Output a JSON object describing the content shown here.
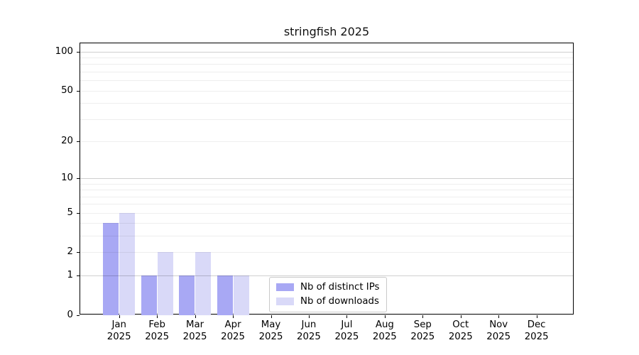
{
  "chart_data": {
    "type": "bar",
    "title": "stringfish 2025",
    "categories": [
      {
        "month": "Jan",
        "year": "2025"
      },
      {
        "month": "Feb",
        "year": "2025"
      },
      {
        "month": "Mar",
        "year": "2025"
      },
      {
        "month": "Apr",
        "year": "2025"
      },
      {
        "month": "May",
        "year": "2025"
      },
      {
        "month": "Jun",
        "year": "2025"
      },
      {
        "month": "Jul",
        "year": "2025"
      },
      {
        "month": "Aug",
        "year": "2025"
      },
      {
        "month": "Sep",
        "year": "2025"
      },
      {
        "month": "Oct",
        "year": "2025"
      },
      {
        "month": "Nov",
        "year": "2025"
      },
      {
        "month": "Dec",
        "year": "2025"
      }
    ],
    "series": [
      {
        "name": "Nb of distinct IPs",
        "color": "#a8a8f4",
        "values": [
          4,
          1,
          1,
          1,
          0,
          0,
          0,
          0,
          0,
          0,
          0,
          0
        ]
      },
      {
        "name": "Nb of downloads",
        "color": "#d9d9f8",
        "values": [
          5,
          2,
          2,
          1,
          0,
          0,
          0,
          0,
          0,
          0,
          0,
          0
        ]
      }
    ],
    "xlabel": "",
    "ylabel": "",
    "yscale": "log1p",
    "ylim": [
      0,
      116
    ],
    "yticks": [
      100,
      50,
      20,
      10,
      5,
      2,
      1,
      0
    ],
    "gridlines": {
      "major": [
        1,
        10,
        100
      ],
      "minor": [
        2,
        3,
        4,
        5,
        6,
        7,
        8,
        9,
        20,
        30,
        40,
        50,
        60,
        70,
        80,
        90
      ]
    },
    "grid": "horizontal",
    "legend_position": "bottom-center-inside"
  }
}
